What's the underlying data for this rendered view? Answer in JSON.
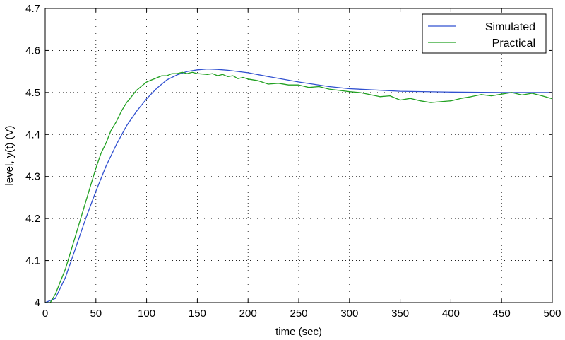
{
  "chart_data": {
    "type": "line",
    "title": "",
    "xlabel": "time (sec)",
    "ylabel": "level, y(t) (V)",
    "xlim": [
      0,
      500
    ],
    "ylim": [
      4.0,
      4.7
    ],
    "grid": true,
    "legend_position": "top-right",
    "x_ticks": [
      0,
      50,
      100,
      150,
      200,
      250,
      300,
      350,
      400,
      450,
      500
    ],
    "x_tick_labels": [
      "0",
      "50",
      "100",
      "150",
      "200",
      "250",
      "300",
      "350",
      "400",
      "450",
      "500"
    ],
    "y_ticks": [
      4.0,
      4.1,
      4.2,
      4.3,
      4.4,
      4.5,
      4.6,
      4.7
    ],
    "y_tick_labels": [
      "4",
      "4.1",
      "4.2",
      "4.3",
      "4.4",
      "4.5",
      "4.6",
      "4.7"
    ],
    "series": [
      {
        "name": "Simulated",
        "color": "#3050d0",
        "x": [
          0,
          10,
          20,
          30,
          40,
          50,
          60,
          70,
          80,
          90,
          100,
          110,
          120,
          130,
          140,
          150,
          160,
          170,
          180,
          200,
          220,
          250,
          280,
          300,
          350,
          400,
          450,
          500
        ],
        "y": [
          4.0,
          4.01,
          4.06,
          4.13,
          4.2,
          4.265,
          4.325,
          4.375,
          4.42,
          4.455,
          4.485,
          4.51,
          4.53,
          4.542,
          4.55,
          4.554,
          4.556,
          4.555,
          4.553,
          4.547,
          4.538,
          4.525,
          4.514,
          4.509,
          4.503,
          4.501,
          4.5,
          4.5
        ]
      },
      {
        "name": "Practical",
        "color": "#20a020",
        "x": [
          0,
          5,
          10,
          15,
          20,
          25,
          30,
          35,
          40,
          45,
          50,
          55,
          60,
          65,
          70,
          75,
          80,
          85,
          90,
          95,
          100,
          105,
          110,
          115,
          120,
          125,
          130,
          135,
          140,
          145,
          150,
          155,
          160,
          165,
          170,
          175,
          180,
          185,
          190,
          195,
          200,
          210,
          220,
          230,
          240,
          250,
          260,
          270,
          280,
          290,
          300,
          310,
          320,
          330,
          340,
          350,
          360,
          370,
          380,
          390,
          400,
          410,
          420,
          430,
          440,
          450,
          460,
          470,
          480,
          490,
          500
        ],
        "y": [
          4.0,
          4.0,
          4.02,
          4.05,
          4.08,
          4.12,
          4.16,
          4.2,
          4.24,
          4.28,
          4.32,
          4.355,
          4.38,
          4.41,
          4.43,
          4.455,
          4.475,
          4.49,
          4.505,
          4.515,
          4.525,
          4.53,
          4.535,
          4.54,
          4.54,
          4.545,
          4.545,
          4.548,
          4.545,
          4.548,
          4.545,
          4.544,
          4.543,
          4.545,
          4.54,
          4.543,
          4.538,
          4.54,
          4.533,
          4.536,
          4.532,
          4.528,
          4.52,
          4.522,
          4.518,
          4.518,
          4.512,
          4.514,
          4.508,
          4.505,
          4.502,
          4.5,
          4.495,
          4.49,
          4.492,
          4.482,
          4.486,
          4.48,
          4.476,
          4.478,
          4.48,
          4.486,
          4.49,
          4.495,
          4.492,
          4.496,
          4.5,
          4.494,
          4.498,
          4.492,
          4.485
        ]
      }
    ]
  }
}
